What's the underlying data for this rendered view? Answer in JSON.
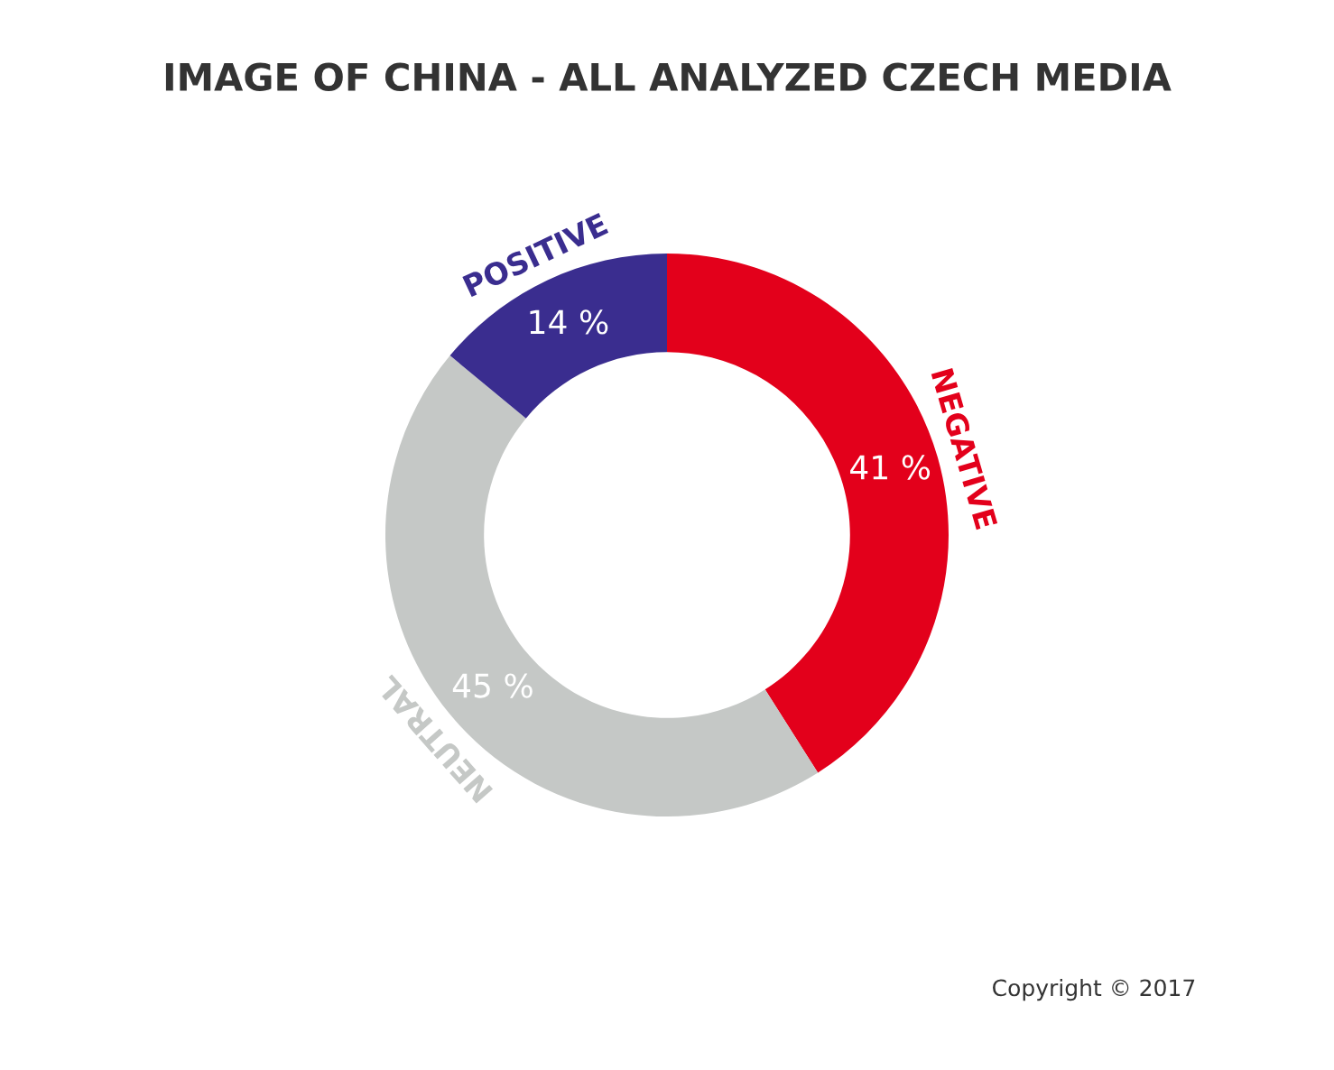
{
  "chart_data": {
    "type": "donut",
    "title": "IMAGE OF CHINA - ALL ANALYZED CZECH MEDIA",
    "categories": [
      "NEGATIVE",
      "NEUTRAL",
      "POSITIVE"
    ],
    "values": [
      41,
      45,
      14
    ],
    "colors": [
      "#e3001b",
      "#c5c8c6",
      "#3a2d8f"
    ],
    "value_labels": [
      "41 %",
      "45 %",
      "14 %"
    ],
    "annotations": [
      "Copyright © 2017"
    ]
  }
}
